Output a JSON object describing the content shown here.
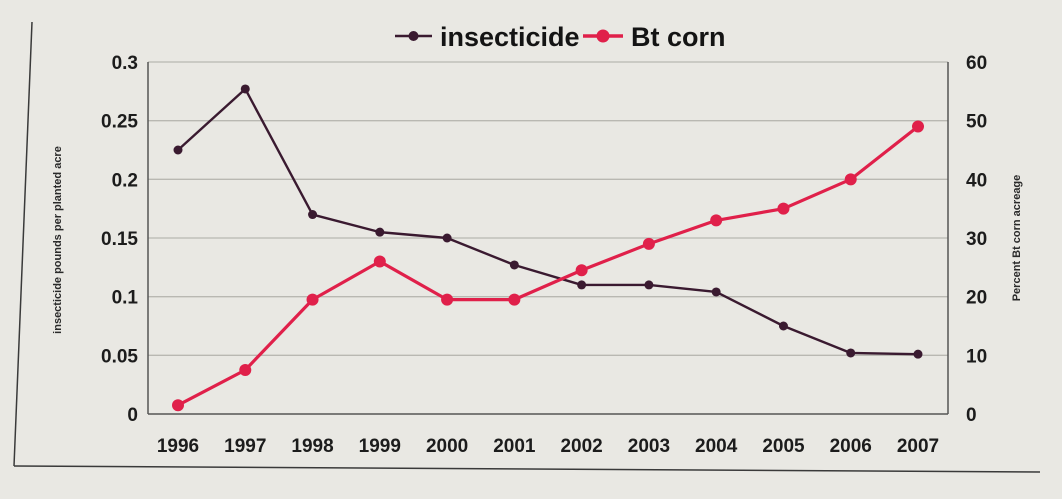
{
  "chart_data": {
    "type": "line",
    "title": "",
    "xlabel": "",
    "ylabel": "insecticide pounds per planted acre",
    "y2label": "Percent Bt corn acreage",
    "x": [
      "1996",
      "1997",
      "1998",
      "1999",
      "2000",
      "2001",
      "2002",
      "2003",
      "2004",
      "2005",
      "2006",
      "2007"
    ],
    "ylim": [
      0,
      0.3
    ],
    "y2lim": [
      0,
      60
    ],
    "yticks": [
      "0",
      "0.05",
      "0.1",
      "0.15",
      "0.2",
      "0.25",
      "0.3"
    ],
    "y2ticks": [
      "0",
      "10",
      "20",
      "30",
      "40",
      "50",
      "60"
    ],
    "grid": true,
    "legend": "top",
    "series": [
      {
        "name": "insecticide",
        "axis": "left",
        "color": "#3a1a30",
        "values": [
          0.225,
          0.277,
          0.17,
          0.155,
          0.15,
          0.127,
          0.11,
          0.11,
          0.104,
          0.075,
          0.052,
          0.051
        ]
      },
      {
        "name": "Bt corn",
        "axis": "right",
        "color": "#e0204a",
        "values": [
          1.5,
          7.5,
          19.5,
          26,
          19.5,
          19.5,
          24.5,
          29,
          33,
          35,
          40,
          49
        ]
      }
    ]
  }
}
